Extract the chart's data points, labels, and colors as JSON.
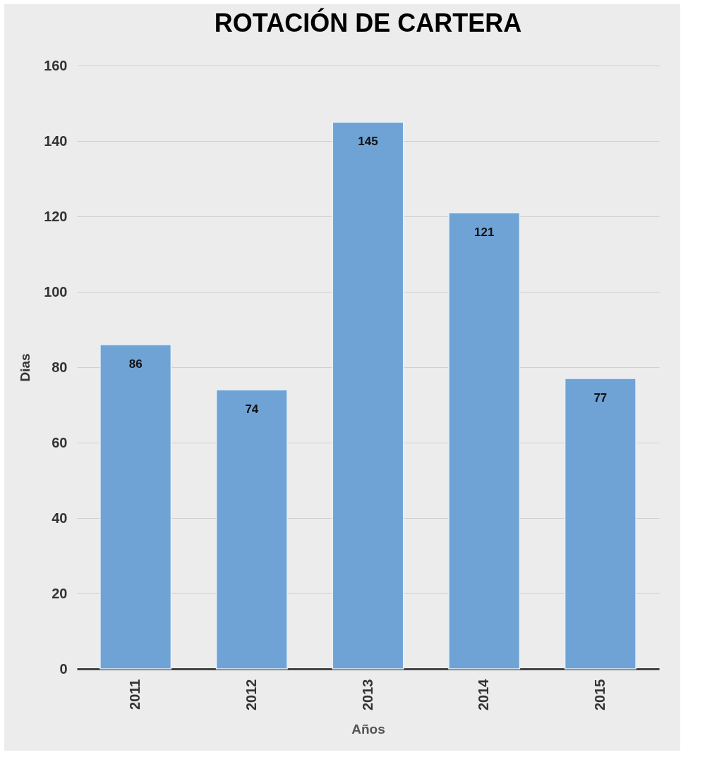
{
  "chart_data": {
    "type": "bar",
    "title": "ROTACIÓN DE CARTERA",
    "xlabel": "Años",
    "ylabel": "Dias",
    "categories": [
      "2011",
      "2012",
      "2013",
      "2014",
      "2015"
    ],
    "values": [
      86,
      74,
      145,
      121,
      77
    ],
    "color": "#6fa3d6",
    "ylim": [
      0,
      160
    ],
    "yticks": [
      0,
      20,
      40,
      60,
      80,
      100,
      120,
      140,
      160
    ],
    "grid": "y",
    "data_labels": true
  }
}
